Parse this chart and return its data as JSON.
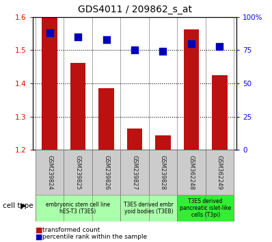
{
  "title": "GDS4011 / 209862_s_at",
  "samples": [
    "GSM239824",
    "GSM239825",
    "GSM239826",
    "GSM239827",
    "GSM239828",
    "GSM362248",
    "GSM362249"
  ],
  "red_values": [
    1.6,
    1.462,
    1.385,
    1.265,
    1.245,
    1.563,
    1.425
  ],
  "blue_values": [
    88,
    85,
    83,
    75,
    74,
    80,
    78
  ],
  "ylim_left": [
    1.2,
    1.6
  ],
  "ylim_right": [
    0,
    100
  ],
  "yticks_left": [
    1.2,
    1.3,
    1.4,
    1.5,
    1.6
  ],
  "yticks_right": [
    0,
    25,
    50,
    75,
    100
  ],
  "ytick_labels_right": [
    "0",
    "25",
    "50",
    "75",
    "100%"
  ],
  "bar_color": "#bb1111",
  "dot_color": "#0000bb",
  "bar_width": 0.55,
  "dot_size": 50,
  "grid_color": "black",
  "cell_type_label": "cell type",
  "legend_red": "transformed count",
  "legend_blue": "percentile rank within the sample",
  "sample_box_color": "#cccccc",
  "sample_text_color": "#222222",
  "group_spans": [
    {
      "start": 0,
      "end": 2,
      "label": "embryonic stem cell line\nhES-T3 (T3ES)",
      "color": "#aaffaa"
    },
    {
      "start": 3,
      "end": 4,
      "label": "T3ES derived embr\nyoid bodies (T3EB)",
      "color": "#aaffaa"
    },
    {
      "start": 5,
      "end": 6,
      "label": "T3ES derived\npancreatic islet-like\ncells (T3pi)",
      "color": "#33ee33"
    }
  ]
}
